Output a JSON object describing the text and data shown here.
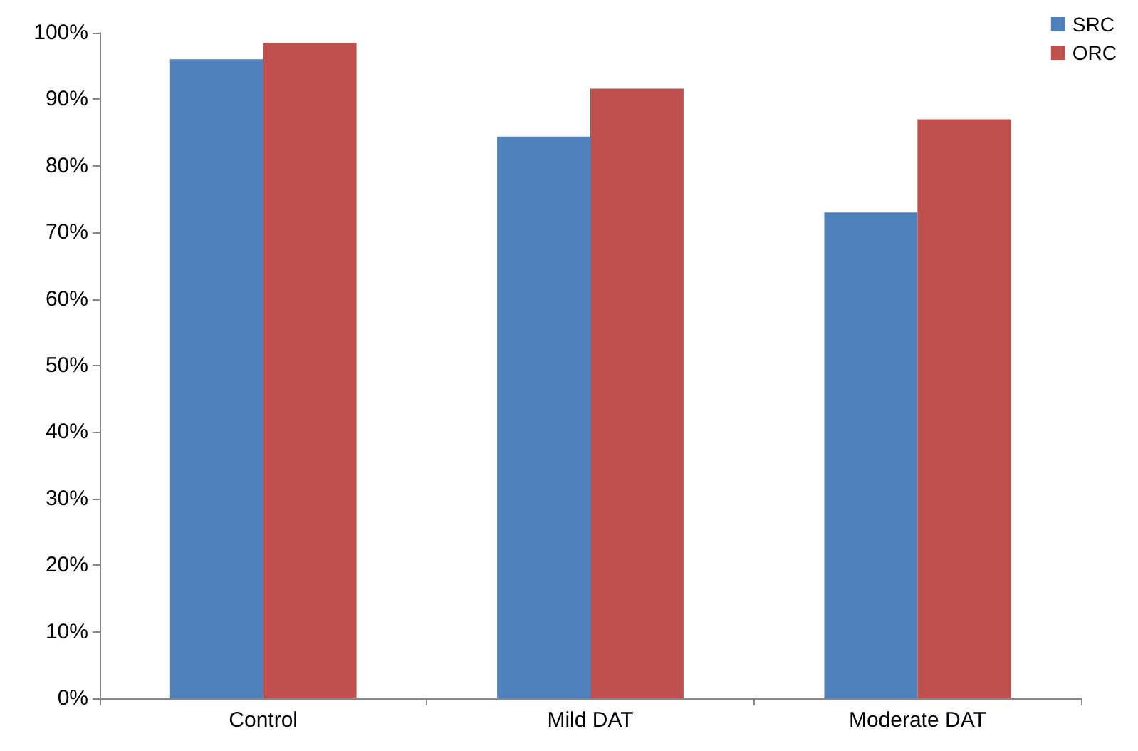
{
  "chart_data": {
    "type": "bar",
    "categories": [
      "Control",
      "Mild DAT",
      "Moderate DAT"
    ],
    "series": [
      {
        "name": "SRC",
        "color": "#4f81bd",
        "values": [
          96,
          84.4,
          73
        ]
      },
      {
        "name": "ORC",
        "color": "#c0504d",
        "values": [
          98.5,
          91.6,
          87
        ]
      }
    ],
    "ylim": [
      0,
      100
    ],
    "yticks": [
      {
        "value": 0,
        "label": "0%"
      },
      {
        "value": 10,
        "label": "10%"
      },
      {
        "value": 20,
        "label": "20%"
      },
      {
        "value": 30,
        "label": "30%"
      },
      {
        "value": 40,
        "label": "40%"
      },
      {
        "value": 50,
        "label": "50%"
      },
      {
        "value": 60,
        "label": "60%"
      },
      {
        "value": 70,
        "label": "70%"
      },
      {
        "value": 80,
        "label": "80%"
      },
      {
        "value": 90,
        "label": "90%"
      },
      {
        "value": 100,
        "label": "100%"
      }
    ],
    "grid": false,
    "legend": "top right"
  }
}
